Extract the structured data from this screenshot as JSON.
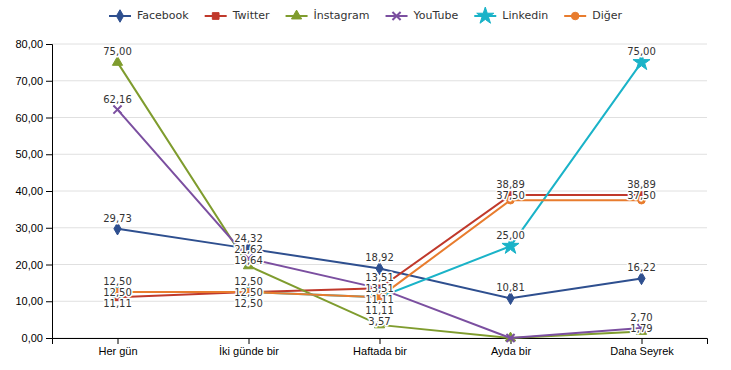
{
  "chart_data": {
    "type": "line",
    "categories": [
      "Her gün",
      "İki günde bir",
      "Haftada bir",
      "Ayda bir",
      "Daha Seyrek"
    ],
    "series": [
      {
        "name": "Facebook",
        "color": "#2e4f8f",
        "marker": "diamond",
        "values": [
          29.73,
          24.32,
          18.92,
          10.81,
          16.22
        ],
        "value_labels": [
          "29,73",
          "24,32",
          "18,92",
          "10,81",
          "16,22"
        ]
      },
      {
        "name": "Twitter",
        "color": "#c0392b",
        "marker": "square",
        "values": [
          11.11,
          12.5,
          13.51,
          38.89,
          38.89
        ],
        "value_labels": [
          "11,11",
          "12,50",
          "13,51",
          "38,89",
          "38,89"
        ]
      },
      {
        "name": "İnstagram",
        "color": "#7f9c2e",
        "marker": "triangle",
        "values": [
          75.0,
          19.64,
          3.57,
          0.0,
          1.79
        ],
        "value_labels": [
          "75,00",
          "19,64",
          "3,57",
          null,
          "1,79"
        ]
      },
      {
        "name": "YouTube",
        "color": "#7b4fa0",
        "marker": "x",
        "values": [
          62.16,
          21.62,
          13.51,
          0.0,
          2.7
        ],
        "value_labels": [
          "62,16",
          "21,62",
          "13,51",
          null,
          "2,70"
        ]
      },
      {
        "name": "Linkedin",
        "color": "#1ab3c8",
        "marker": "star",
        "values": [
          12.5,
          12.5,
          11.11,
          25.0,
          75.0
        ],
        "value_labels": [
          "12,50",
          "12,50",
          "11,11",
          "25,00",
          "75,00"
        ]
      },
      {
        "name": "Diğer",
        "color": "#e87c2e",
        "marker": "circle",
        "values": [
          12.5,
          12.5,
          11.11,
          37.5,
          37.5
        ],
        "value_labels": [
          "12,50",
          "12,50",
          "11,11",
          "37,50",
          "37,50"
        ]
      }
    ],
    "ylim": [
      0,
      80
    ],
    "yticks": [
      {
        "value": 0,
        "label": "0,00"
      },
      {
        "value": 10,
        "label": "10,00"
      },
      {
        "value": 20,
        "label": "20,00"
      },
      {
        "value": 30,
        "label": "30,00"
      },
      {
        "value": 40,
        "label": "40,00"
      },
      {
        "value": 50,
        "label": "50,00"
      },
      {
        "value": 60,
        "label": "60,00"
      },
      {
        "value": 70,
        "label": "70,00"
      },
      {
        "value": 80,
        "label": "80,00"
      }
    ],
    "grid": true,
    "legend": "top",
    "data_labels": true
  }
}
